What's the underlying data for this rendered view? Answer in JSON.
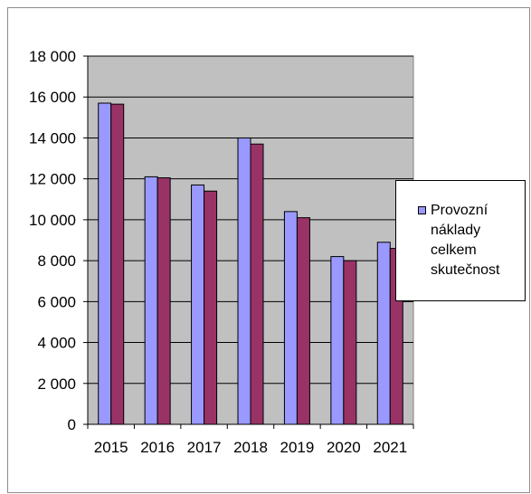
{
  "chart_data": {
    "type": "bar",
    "categories": [
      "2015",
      "2016",
      "2017",
      "2018",
      "2019",
      "2020",
      "2021"
    ],
    "series": [
      {
        "name": "Provozní\nnáklady\ncelkem\nskutečnost",
        "values": [
          15700,
          12100,
          11700,
          14000,
          10400,
          8200,
          8900
        ],
        "color": "#9999ff"
      },
      {
        "values": [
          15650,
          12050,
          11400,
          13700,
          10100,
          8000,
          8600
        ],
        "color": "#993366"
      }
    ],
    "ylim": [
      0,
      18000
    ],
    "yticks": [
      0,
      2000,
      4000,
      6000,
      8000,
      10000,
      12000,
      14000,
      16000,
      18000
    ],
    "ytick_labels": [
      "0",
      "2 000",
      "4 000",
      "6 000",
      "8 000",
      "10 000",
      "12 000",
      "14 000",
      "16 000",
      "18 000"
    ],
    "grid": true,
    "legend": "right",
    "plot_background": "#c0c0c0"
  }
}
